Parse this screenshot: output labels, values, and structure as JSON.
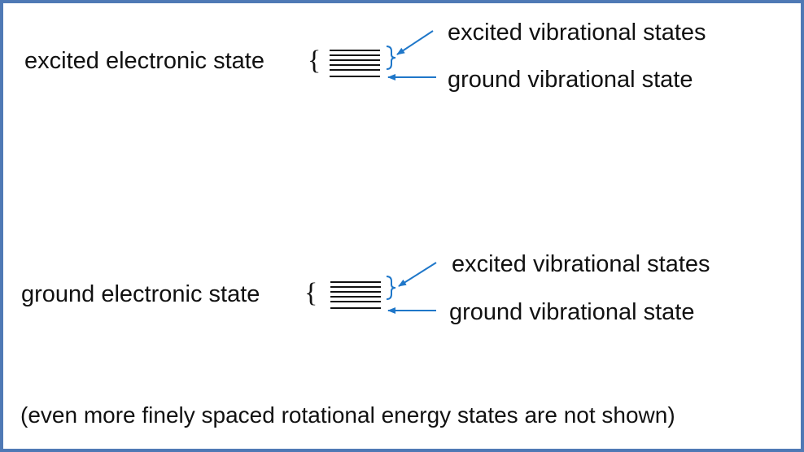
{
  "colors": {
    "border": "#4f79b5",
    "arrow": "#1f77c9",
    "text": "#111111",
    "levels": "#111111"
  },
  "excited_group": {
    "label": "excited electronic state",
    "vib_excited_label": "excited vibrational states",
    "vib_ground_label": "ground vibrational state"
  },
  "ground_group": {
    "label": "ground electronic state",
    "vib_excited_label": "excited vibrational states",
    "vib_ground_label": "ground vibrational state"
  },
  "footnote": "(even more finely spaced rotational energy states are not shown)"
}
